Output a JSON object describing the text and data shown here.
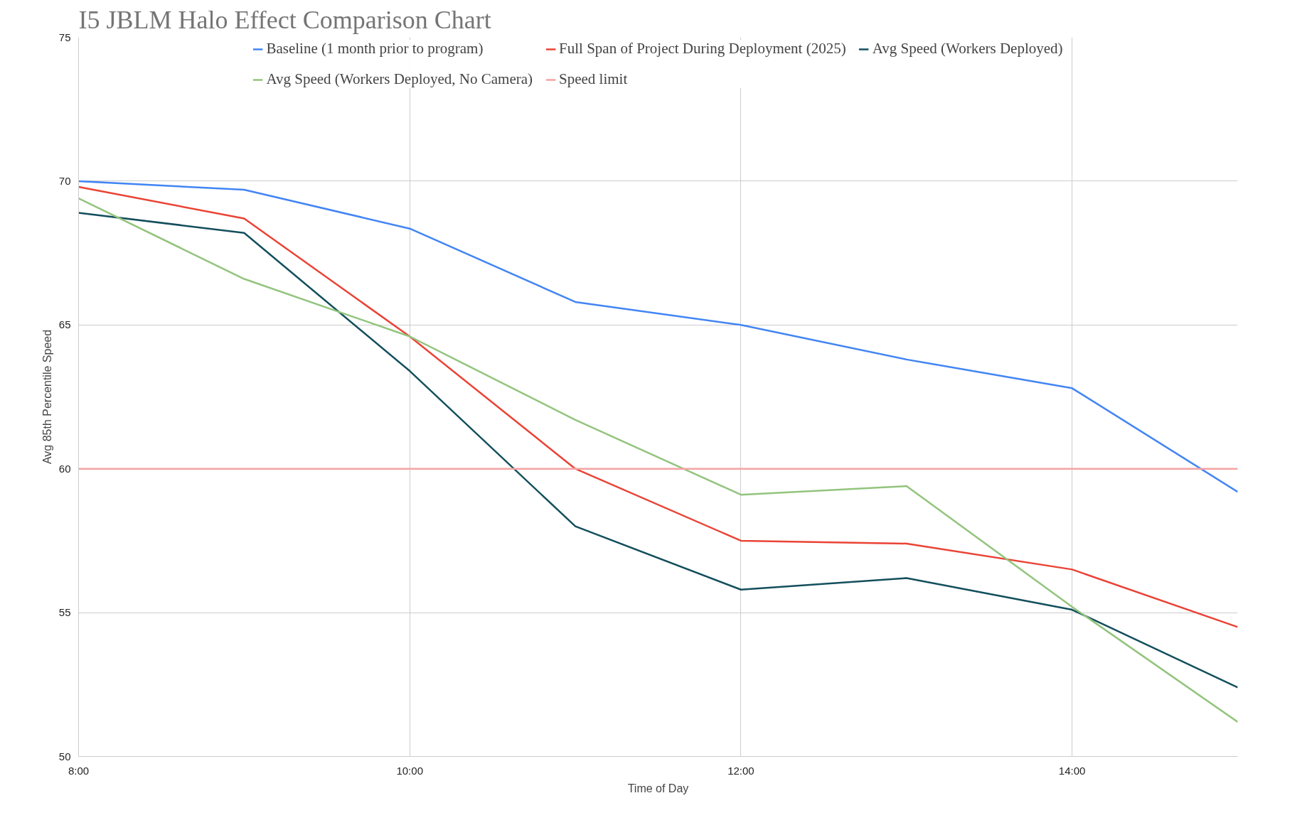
{
  "chart_data": {
    "type": "line",
    "title": "I5 JBLM Halo Effect Comparison Chart",
    "xlabel": "Time of Day",
    "ylabel": "Avg 85th Percentile Speed",
    "x": [
      8,
      9,
      10,
      11,
      12,
      13,
      14,
      15
    ],
    "series": [
      {
        "name": "Baseline (1 month prior to program)",
        "color": "#4285f4",
        "values": [
          70.0,
          69.7,
          68.35,
          65.8,
          65.0,
          63.8,
          62.8,
          59.2
        ]
      },
      {
        "name": "Full Span of Project During Deployment (2025)",
        "color": "#ea4335",
        "values": [
          69.8,
          68.7,
          64.6,
          60.0,
          57.5,
          57.4,
          56.5,
          54.5
        ]
      },
      {
        "name": "Avg Speed (Workers Deployed)",
        "color": "#134f5c",
        "values": [
          68.9,
          68.2,
          63.4,
          58.0,
          55.8,
          56.2,
          55.1,
          52.4
        ]
      },
      {
        "name": "Avg Speed (Workers Deployed, No Camera)",
        "color": "#93c47d",
        "values": [
          69.4,
          66.6,
          64.6,
          61.7,
          59.1,
          59.4,
          55.2,
          51.2
        ]
      },
      {
        "name": "Speed limit",
        "color": "#f4a3a3",
        "values": [
          60,
          60,
          60,
          60,
          60,
          60,
          60,
          60
        ]
      }
    ],
    "xlim": [
      8,
      15
    ],
    "xticks": [
      {
        "value": 8,
        "label": "8:00"
      },
      {
        "value": 10,
        "label": "10:00"
      },
      {
        "value": 12,
        "label": "12:00"
      },
      {
        "value": 14,
        "label": "14:00"
      }
    ],
    "ylim": [
      50,
      75
    ],
    "yticks": [
      50,
      55,
      60,
      65,
      70,
      75
    ],
    "grid": true,
    "legend": "top",
    "marker": "none",
    "line_style": "solid"
  }
}
